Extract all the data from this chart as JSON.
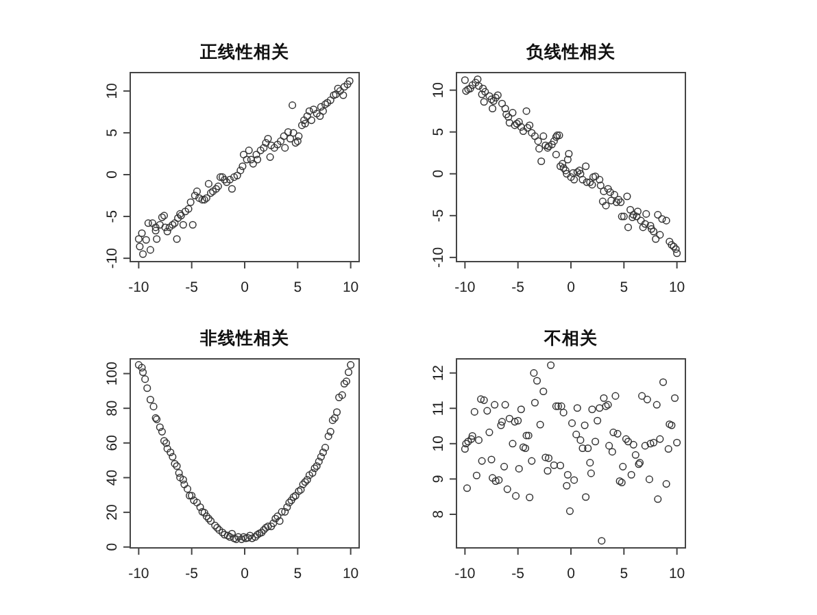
{
  "chart_data": [
    {
      "type": "scatter",
      "title": "正线性相关",
      "color": "#333333",
      "marker": "circle",
      "xlim": [
        -10.8,
        10.8
      ],
      "ylim": [
        -10.4,
        12.2
      ],
      "xticks": [
        -10,
        -5,
        0,
        5,
        10
      ],
      "yticks": [
        -10,
        -5,
        0,
        5,
        10
      ],
      "x": [
        -10.0,
        -9.9,
        -9.6,
        -9.7,
        -9.3,
        -8.9,
        -9.1,
        -8.7,
        -8.4,
        -8.3,
        -8.4,
        -8.0,
        -7.8,
        -7.6,
        -7.5,
        -7.3,
        -7.1,
        -6.8,
        -6.6,
        -6.4,
        -6.3,
        -6.1,
        -6.0,
        -5.8,
        -5.6,
        -5.3,
        -5.1,
        -4.9,
        -4.7,
        -4.5,
        -4.3,
        -4.0,
        -3.8,
        -3.6,
        -3.4,
        -3.2,
        -3.0,
        -2.7,
        -2.5,
        -2.3,
        -2.1,
        -1.9,
        -1.7,
        -1.4,
        -1.2,
        -1.0,
        -0.7,
        -0.4,
        -0.2,
        -0.1,
        0.2,
        0.4,
        0.6,
        0.8,
        1.1,
        1.2,
        1.5,
        1.8,
        2.0,
        2.2,
        2.4,
        2.5,
        2.8,
        3.1,
        3.4,
        3.7,
        3.8,
        4.1,
        4.3,
        4.5,
        4.6,
        4.8,
        5.0,
        5.1,
        5.4,
        5.6,
        5.7,
        5.9,
        6.1,
        6.3,
        6.5,
        6.8,
        7.1,
        7.2,
        7.4,
        7.6,
        7.8,
        8.1,
        8.4,
        8.6,
        8.8,
        9.0,
        9.3,
        9.4,
        9.7,
        9.9
      ],
      "values": [
        -7.7,
        -8.6,
        -9.5,
        -7.0,
        -7.8,
        -9.0,
        -5.8,
        -5.8,
        -6.7,
        -7.7,
        -6.3,
        -6.0,
        -5.1,
        -4.9,
        -6.3,
        -6.8,
        -6.3,
        -6.0,
        -5.8,
        -7.7,
        -5.2,
        -4.7,
        -4.9,
        -6.0,
        -4.4,
        -4.1,
        -3.3,
        -6.0,
        -2.5,
        -2.0,
        -2.8,
        -3.0,
        -3.0,
        -2.8,
        -1.1,
        -2.2,
        -2.0,
        -1.7,
        -1.4,
        -0.3,
        -0.3,
        -0.6,
        -0.9,
        -0.6,
        -1.7,
        -0.3,
        -0.1,
        0.5,
        1.0,
        2.4,
        1.8,
        2.9,
        1.8,
        1.3,
        2.4,
        1.8,
        2.9,
        3.2,
        3.8,
        4.3,
        2.1,
        3.5,
        3.2,
        3.6,
        4.0,
        4.6,
        3.2,
        5.1,
        4.3,
        8.3,
        5.0,
        3.8,
        4.0,
        4.6,
        5.9,
        6.5,
        6.1,
        7.0,
        7.6,
        6.5,
        7.8,
        7.3,
        7.0,
        8.1,
        7.6,
        8.4,
        8.6,
        8.9,
        9.5,
        9.6,
        10.3,
        10.0,
        9.5,
        10.5,
        10.8,
        11.2
      ]
    },
    {
      "type": "scatter",
      "title": "负线性相关",
      "color": "#333333",
      "marker": "circle",
      "xlim": [
        -10.8,
        10.8
      ],
      "ylim": [
        -10.5,
        12.1
      ],
      "xticks": [
        -10,
        -5,
        0,
        5,
        10
      ],
      "yticks": [
        -10,
        -5,
        0,
        5,
        10
      ],
      "x": [
        -10.0,
        -9.9,
        -9.7,
        -9.5,
        -9.3,
        -9.0,
        -8.8,
        -8.7,
        -8.4,
        -8.3,
        -8.1,
        -8.2,
        -7.7,
        -7.5,
        -7.3,
        -7.4,
        -7.1,
        -6.9,
        -6.5,
        -6.2,
        -6.1,
        -5.9,
        -5.8,
        -5.5,
        -5.3,
        -5.1,
        -4.9,
        -4.7,
        -4.5,
        -4.2,
        -4.1,
        -3.9,
        -3.7,
        -3.4,
        -3.1,
        -3.0,
        -2.8,
        -2.6,
        -2.4,
        -2.2,
        -2.1,
        -1.8,
        -1.6,
        -1.4,
        -1.3,
        -1.1,
        -1.4,
        -1.0,
        -0.8,
        -0.7,
        -0.5,
        -0.4,
        -0.3,
        -0.2,
        0.0,
        0.2,
        0.3,
        0.6,
        0.8,
        0.9,
        1.1,
        1.4,
        1.5,
        1.8,
        2.0,
        2.1,
        2.3,
        2.7,
        2.8,
        3.0,
        3.1,
        3.3,
        3.5,
        3.7,
        3.8,
        4.1,
        4.3,
        4.5,
        4.7,
        4.8,
        5.0,
        5.3,
        5.4,
        5.6,
        5.8,
        5.9,
        6.2,
        6.3,
        6.6,
        6.8,
        7.0,
        7.1,
        7.5,
        7.6,
        7.8,
        8.0,
        8.2,
        8.4,
        8.6,
        9.0,
        9.3,
        9.5,
        9.7,
        9.9,
        10.0
      ],
      "values": [
        11.2,
        9.9,
        10.1,
        10.2,
        10.6,
        10.9,
        11.3,
        10.5,
        9.5,
        10.2,
        9.8,
        8.6,
        9.3,
        8.9,
        8.7,
        7.8,
        9.1,
        9.4,
        8.4,
        7.8,
        7.1,
        6.8,
        6.1,
        7.3,
        5.8,
        6.0,
        6.2,
        5.6,
        5.1,
        7.5,
        5.5,
        5.8,
        4.9,
        4.5,
        3.9,
        3.0,
        1.5,
        4.5,
        3.4,
        3.1,
        3.3,
        3.5,
        3.9,
        4.4,
        4.6,
        4.6,
        2.3,
        0.9,
        1.2,
        0.7,
        0.4,
        0.0,
        1.7,
        2.4,
        -0.4,
        0.1,
        -0.7,
        0.2,
        0.4,
        0.0,
        -0.7,
        0.9,
        -1.0,
        -1.0,
        -1.3,
        -0.4,
        -0.3,
        -0.7,
        -1.4,
        -3.3,
        -2.1,
        -3.8,
        -1.8,
        -2.2,
        -3.2,
        -2.5,
        -3.4,
        -3.1,
        -3.4,
        -5.1,
        -5.1,
        -2.7,
        -6.4,
        -4.3,
        -5.2,
        -4.9,
        -5.1,
        -4.5,
        -5.6,
        -6.4,
        -6.0,
        -4.8,
        -6.2,
        -6.6,
        -6.9,
        -7.8,
        -4.9,
        -7.3,
        -5.4,
        -5.6,
        -8.1,
        -8.5,
        -8.7,
        -9.0,
        -9.5
      ]
    },
    {
      "type": "scatter",
      "title": "非线性相关",
      "color": "#333333",
      "marker": "circle",
      "xlim": [
        -10.8,
        10.8
      ],
      "ylim": [
        -0.5,
        108.5
      ],
      "xticks": [
        -10,
        -5,
        0,
        5,
        10
      ],
      "yticks": [
        0,
        20,
        40,
        60,
        80,
        100
      ],
      "x": [
        -10.0,
        -9.6,
        -9.7,
        -9.4,
        -9.2,
        -8.9,
        -8.6,
        -8.4,
        -8.3,
        -8.0,
        -7.8,
        -7.6,
        -7.4,
        -7.3,
        -7.0,
        -6.8,
        -6.6,
        -6.4,
        -6.2,
        -6.1,
        -5.8,
        -5.7,
        -5.4,
        -5.2,
        -5.0,
        -4.8,
        -4.5,
        -4.2,
        -4.0,
        -3.8,
        -3.6,
        -3.4,
        -3.2,
        -2.8,
        -2.6,
        -2.4,
        -2.1,
        -1.9,
        -1.6,
        -1.4,
        -1.2,
        -1.0,
        -0.8,
        -0.6,
        -0.3,
        -0.1,
        0.1,
        0.3,
        0.5,
        0.7,
        1.0,
        1.2,
        1.4,
        1.6,
        1.8,
        2.0,
        2.2,
        2.5,
        2.7,
        2.9,
        3.1,
        3.3,
        3.5,
        3.8,
        4.0,
        4.2,
        4.4,
        4.6,
        4.8,
        5.1,
        5.3,
        5.5,
        5.7,
        5.9,
        6.1,
        6.4,
        6.6,
        6.8,
        7.0,
        7.2,
        7.4,
        7.6,
        7.9,
        8.1,
        8.3,
        8.5,
        8.7,
        8.9,
        9.2,
        9.4,
        9.6,
        9.8,
        10.0
      ],
      "values": [
        105.0,
        100.8,
        103.4,
        96.8,
        91.6,
        85.0,
        81.0,
        74.4,
        73.6,
        69.1,
        66.5,
        61.2,
        59.9,
        56.7,
        54.6,
        52.0,
        48.0,
        46.7,
        42.7,
        40.1,
        38.8,
        36.1,
        33.5,
        29.6,
        29.6,
        26.9,
        25.6,
        23.0,
        20.3,
        19.8,
        17.7,
        16.4,
        15.0,
        12.4,
        11.1,
        9.8,
        8.4,
        7.1,
        6.6,
        5.8,
        7.7,
        5.0,
        4.5,
        5.8,
        4.5,
        5.8,
        5.0,
        5.3,
        6.6,
        5.0,
        5.8,
        7.1,
        7.9,
        8.4,
        9.8,
        11.1,
        11.9,
        11.9,
        13.7,
        16.4,
        17.7,
        15.0,
        20.3,
        20.3,
        23.0,
        25.6,
        26.9,
        28.8,
        29.6,
        32.2,
        33.0,
        36.1,
        37.5,
        38.8,
        41.4,
        42.7,
        45.4,
        46.7,
        49.3,
        52.0,
        54.6,
        57.3,
        63.9,
        66.5,
        73.1,
        74.4,
        77.8,
        86.3,
        87.6,
        94.2,
        95.5,
        100.8,
        105.0
      ]
    },
    {
      "type": "scatter",
      "title": "不相关",
      "color": "#333333",
      "marker": "circle",
      "xlim": [
        -10.8,
        10.8
      ],
      "ylim": [
        7.05,
        12.4
      ],
      "xticks": [
        -10,
        -5,
        0,
        5,
        10
      ],
      "yticks": [
        8,
        9,
        10,
        11,
        12
      ],
      "x": [
        -10.0,
        -9.8,
        -9.9,
        -9.7,
        -9.4,
        -9.3,
        -9.1,
        -8.9,
        -8.7,
        -8.5,
        -8.2,
        -8.4,
        -7.9,
        -7.7,
        -7.5,
        -7.4,
        -7.2,
        -7.1,
        -6.8,
        -6.6,
        -6.5,
        -6.3,
        -6.2,
        -6.0,
        -5.8,
        -5.5,
        -5.3,
        -5.2,
        -5.0,
        -4.9,
        -4.7,
        -4.5,
        -4.3,
        -4.2,
        -4.0,
        -3.9,
        -3.7,
        -3.5,
        -3.4,
        -3.2,
        -2.9,
        -2.6,
        -2.4,
        -2.2,
        -2.1,
        -1.9,
        -1.6,
        -1.4,
        -1.2,
        -1.0,
        -0.9,
        -0.7,
        -0.4,
        -0.3,
        -0.1,
        0.1,
        0.3,
        0.5,
        0.6,
        0.9,
        1.1,
        1.3,
        1.4,
        1.6,
        1.8,
        1.9,
        2.0,
        2.3,
        2.5,
        2.7,
        2.9,
        3.1,
        3.3,
        3.5,
        3.6,
        3.9,
        4.0,
        4.2,
        4.4,
        4.6,
        4.8,
        4.9,
        5.2,
        5.4,
        5.7,
        5.9,
        6.1,
        6.4,
        6.5,
        6.7,
        7.0,
        7.2,
        7.4,
        7.5,
        7.8,
        8.1,
        8.2,
        8.4,
        8.7,
        9.0,
        9.2,
        9.3,
        9.5,
        9.8,
        10.0
      ],
      "values": [
        9.85,
        8.74,
        10.0,
        10.06,
        10.13,
        10.22,
        10.9,
        9.1,
        10.1,
        11.26,
        11.23,
        9.51,
        10.93,
        10.32,
        9.55,
        9.03,
        11.1,
        8.94,
        8.97,
        10.52,
        10.62,
        9.35,
        11.1,
        8.71,
        10.71,
        10.0,
        10.62,
        8.52,
        10.65,
        9.29,
        10.97,
        9.9,
        9.87,
        10.23,
        10.23,
        8.48,
        9.51,
        12.0,
        11.16,
        11.78,
        10.54,
        11.48,
        9.61,
        9.23,
        9.59,
        12.22,
        9.39,
        11.06,
        11.06,
        9.38,
        11.06,
        10.88,
        8.81,
        9.12,
        8.09,
        10.58,
        8.97,
        10.26,
        11.01,
        10.1,
        9.87,
        10.52,
        8.49,
        9.87,
        9.46,
        9.16,
        10.97,
        10.06,
        10.65,
        11.01,
        7.25,
        11.29,
        11.06,
        11.1,
        9.94,
        9.77,
        10.32,
        11.35,
        10.28,
        8.94,
        8.9,
        9.35,
        10.13,
        10.06,
        9.12,
        9.97,
        9.68,
        9.42,
        9.46,
        11.35,
        9.94,
        11.25,
        8.99,
        10.0,
        10.03,
        11.1,
        8.43,
        10.13,
        11.74,
        8.86,
        9.85,
        10.55,
        10.52,
        11.29,
        10.03
      ]
    }
  ]
}
